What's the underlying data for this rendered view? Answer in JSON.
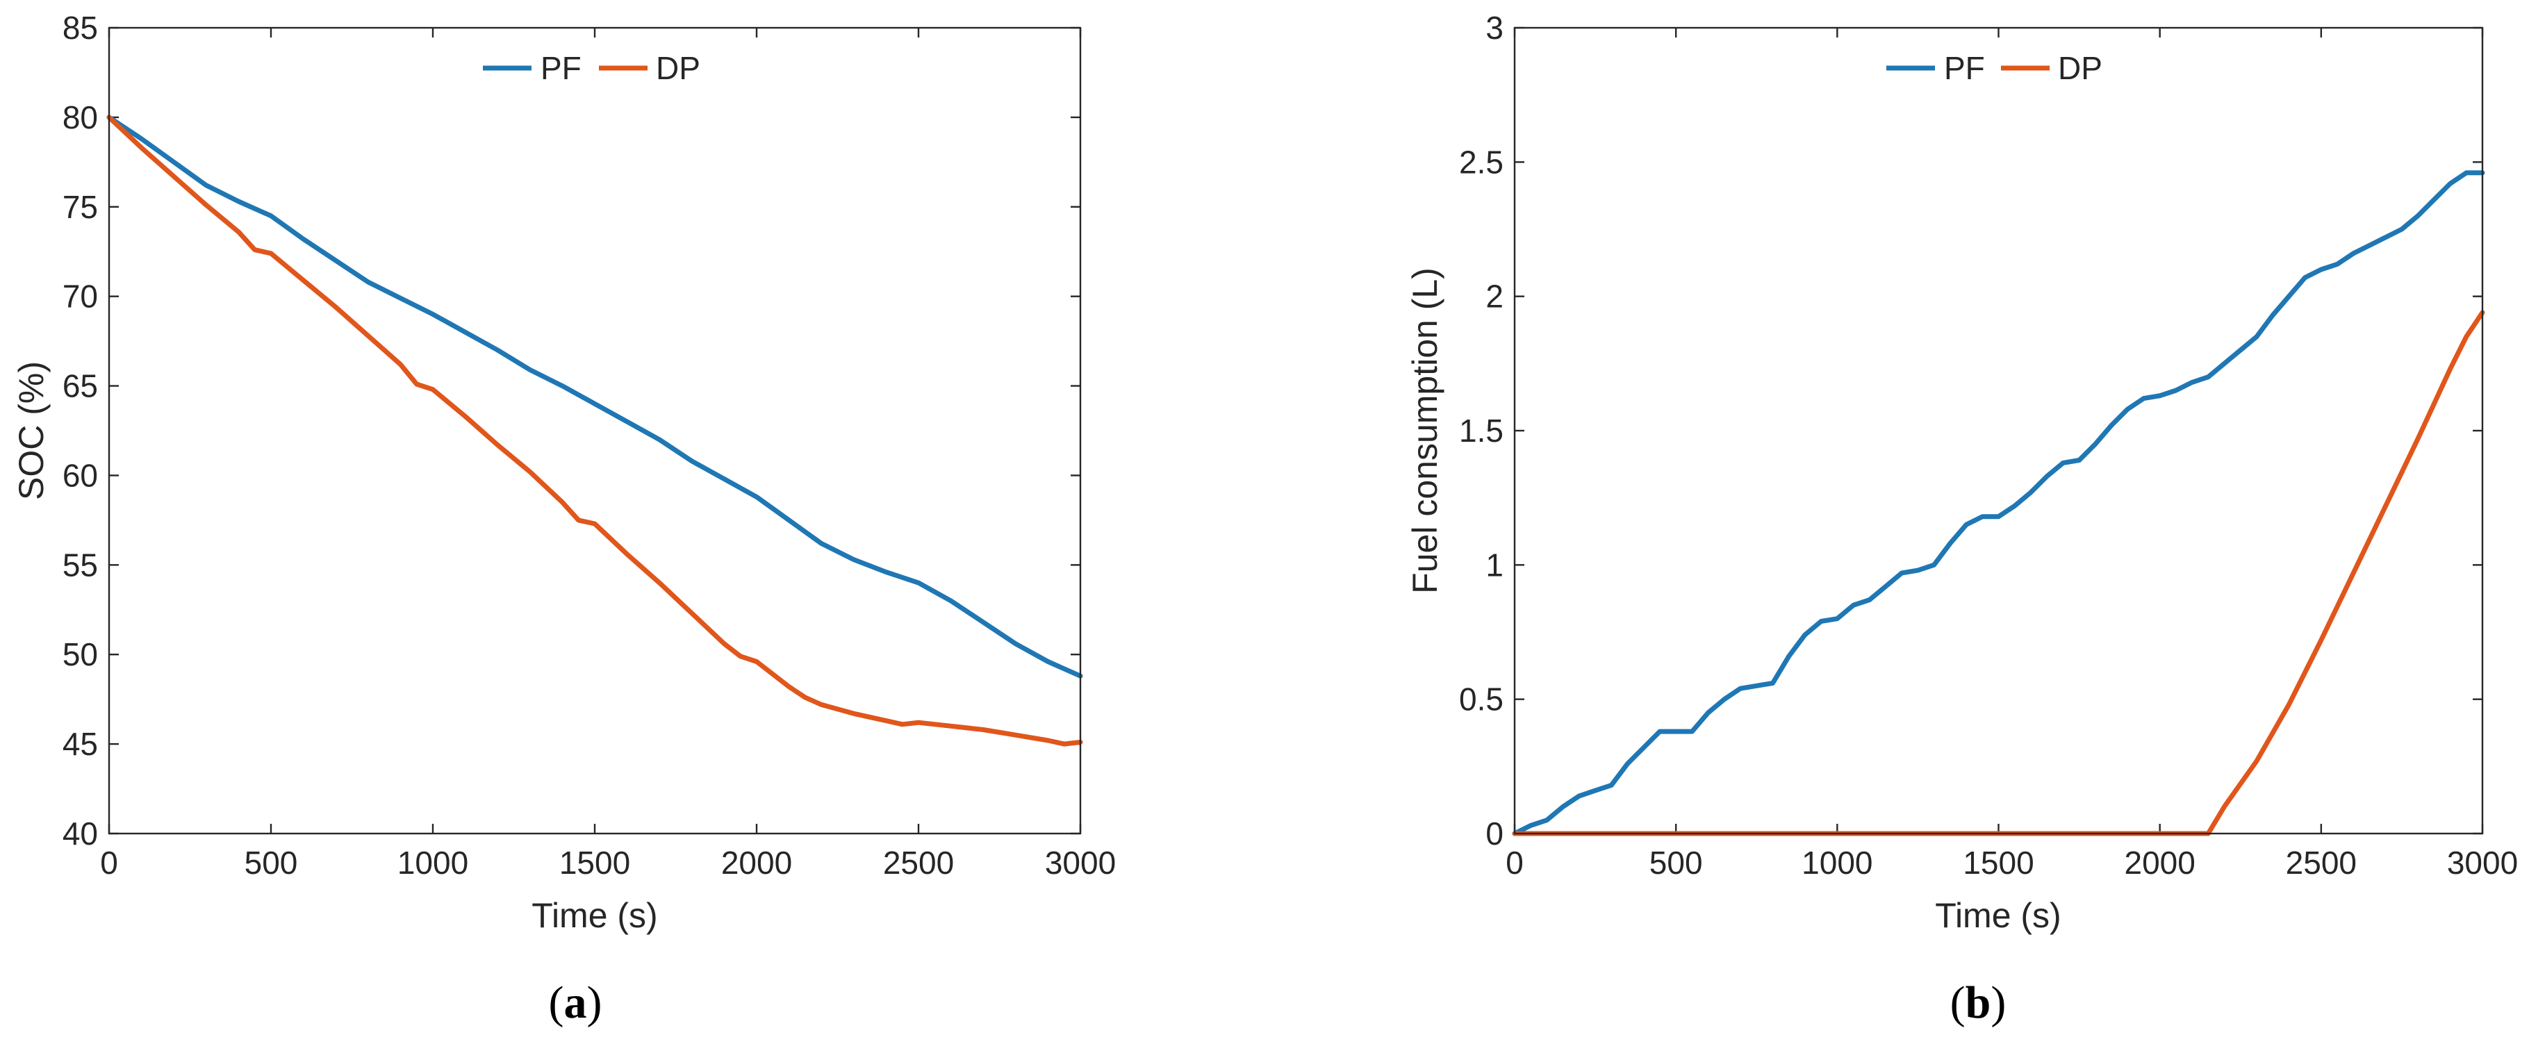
{
  "colors": {
    "PF": "#1f77b4",
    "DP": "#e0561b",
    "axis": "#262626"
  },
  "panels": [
    {
      "label_open": "(",
      "label_letter": "a",
      "label_close": ")"
    },
    {
      "label_open": "(",
      "label_letter": "b",
      "label_close": ")"
    }
  ],
  "chart_data": [
    {
      "type": "line",
      "title": "",
      "xlabel": "Time (s)",
      "ylabel": "SOC (%)",
      "xlim": [
        0,
        3000
      ],
      "ylim": [
        40,
        85
      ],
      "xticks": [
        0,
        500,
        1000,
        1500,
        2000,
        2500,
        3000
      ],
      "yticks": [
        40,
        45,
        50,
        55,
        60,
        65,
        70,
        75,
        80,
        85
      ],
      "legend": {
        "placement": "top-center",
        "entries": [
          "PF",
          "DP"
        ]
      },
      "series": [
        {
          "name": "PF",
          "x": [
            0,
            100,
            200,
            300,
            400,
            500,
            600,
            700,
            800,
            900,
            1000,
            1100,
            1200,
            1300,
            1400,
            1500,
            1600,
            1700,
            1800,
            1900,
            2000,
            2100,
            2200,
            2300,
            2400,
            2500,
            2600,
            2700,
            2800,
            2900,
            3000
          ],
          "values": [
            80,
            78.8,
            77.5,
            76.2,
            75.3,
            74.5,
            73.2,
            72.0,
            70.8,
            69.9,
            69.0,
            68.0,
            67.0,
            65.9,
            65.0,
            64.0,
            63.0,
            62.0,
            60.8,
            59.8,
            58.8,
            57.5,
            56.2,
            55.3,
            54.6,
            54.0,
            53.0,
            51.8,
            50.6,
            49.6,
            48.8
          ]
        },
        {
          "name": "DP",
          "x": [
            0,
            100,
            200,
            300,
            400,
            450,
            500,
            600,
            700,
            800,
            900,
            950,
            1000,
            1100,
            1200,
            1300,
            1400,
            1450,
            1500,
            1600,
            1700,
            1800,
            1900,
            1950,
            2000,
            2100,
            2150,
            2200,
            2300,
            2400,
            2450,
            2500,
            2600,
            2700,
            2800,
            2900,
            2950,
            3000
          ],
          "values": [
            80,
            78.3,
            76.7,
            75.1,
            73.6,
            72.6,
            72.4,
            70.9,
            69.4,
            67.8,
            66.2,
            65.1,
            64.8,
            63.3,
            61.7,
            60.2,
            58.5,
            57.5,
            57.3,
            55.6,
            54.0,
            52.3,
            50.6,
            49.9,
            49.6,
            48.2,
            47.6,
            47.2,
            46.7,
            46.3,
            46.1,
            46.2,
            46.0,
            45.8,
            45.5,
            45.2,
            45.0,
            45.1
          ]
        }
      ]
    },
    {
      "type": "line",
      "title": "",
      "xlabel": "Time (s)",
      "ylabel": "Fuel consumption (L)",
      "xlim": [
        0,
        3000
      ],
      "ylim": [
        0,
        3
      ],
      "xticks": [
        0,
        500,
        1000,
        1500,
        2000,
        2500,
        3000
      ],
      "yticks": [
        0,
        0.5,
        1,
        1.5,
        2,
        2.5,
        3
      ],
      "legend": {
        "placement": "top-center",
        "entries": [
          "PF",
          "DP"
        ]
      },
      "series": [
        {
          "name": "PF",
          "x": [
            0,
            50,
            100,
            150,
            200,
            250,
            300,
            350,
            400,
            450,
            500,
            550,
            600,
            650,
            700,
            750,
            800,
            850,
            900,
            950,
            1000,
            1050,
            1100,
            1150,
            1200,
            1250,
            1300,
            1350,
            1400,
            1450,
            1500,
            1550,
            1600,
            1650,
            1700,
            1750,
            1800,
            1850,
            1900,
            1950,
            2000,
            2050,
            2100,
            2150,
            2200,
            2250,
            2300,
            2350,
            2400,
            2450,
            2500,
            2550,
            2600,
            2650,
            2700,
            2750,
            2800,
            2850,
            2900,
            2950,
            3000
          ],
          "values": [
            0,
            0.03,
            0.05,
            0.1,
            0.14,
            0.16,
            0.18,
            0.26,
            0.32,
            0.38,
            0.38,
            0.38,
            0.45,
            0.5,
            0.54,
            0.55,
            0.56,
            0.66,
            0.74,
            0.79,
            0.8,
            0.85,
            0.87,
            0.92,
            0.97,
            0.98,
            1.0,
            1.08,
            1.15,
            1.18,
            1.18,
            1.22,
            1.27,
            1.33,
            1.38,
            1.39,
            1.45,
            1.52,
            1.58,
            1.62,
            1.63,
            1.65,
            1.68,
            1.7,
            1.75,
            1.8,
            1.85,
            1.93,
            2.0,
            2.07,
            2.1,
            2.12,
            2.16,
            2.19,
            2.22,
            2.25,
            2.3,
            2.36,
            2.42,
            2.46,
            2.46
          ]
        },
        {
          "name": "DP",
          "x": [
            0,
            500,
            1000,
            1500,
            2000,
            2150,
            2200,
            2300,
            2400,
            2450,
            2500,
            2600,
            2700,
            2800,
            2900,
            2950,
            3000
          ],
          "values": [
            0,
            0,
            0,
            0,
            0,
            0,
            0.1,
            0.27,
            0.48,
            0.6,
            0.72,
            0.97,
            1.22,
            1.47,
            1.73,
            1.85,
            1.94
          ]
        }
      ]
    }
  ]
}
